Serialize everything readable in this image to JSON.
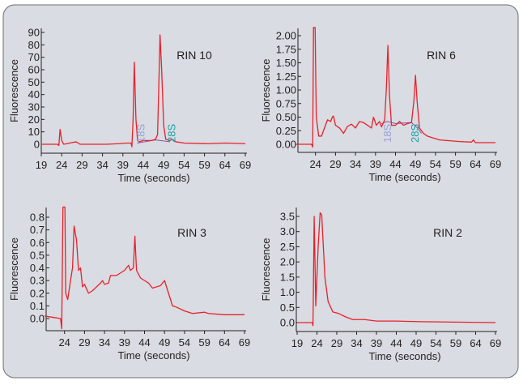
{
  "colors": {
    "trace": "#e8212b",
    "background": "#d9dce2",
    "label_18S": "#9b9fd6",
    "label_28S": "#17a2a4",
    "baseline": "#8a4fa0"
  },
  "chart_data": [
    {
      "type": "line",
      "title": "RIN 10",
      "xlabel": "Time (seconds)",
      "ylabel": "Fluorescence",
      "xlim": [
        19,
        69
      ],
      "ylim": [
        0,
        90
      ],
      "xticks": [
        "19",
        "24",
        "29",
        "34",
        "39",
        "44",
        "49",
        "54",
        "59",
        "64",
        "69"
      ],
      "yticks": [
        "0",
        "10",
        "20",
        "30",
        "40",
        "50",
        "60",
        "70",
        "80",
        "90"
      ],
      "annotations": [
        {
          "text": "18S",
          "x": 43.5
        },
        {
          "text": "28S",
          "x": 51
        }
      ],
      "baseline": [
        [
          42.5,
          1
        ],
        [
          47,
          3.5
        ],
        [
          50.5,
          2
        ]
      ],
      "points": [
        [
          19,
          0
        ],
        [
          23,
          0
        ],
        [
          23.3,
          -1
        ],
        [
          23.6,
          12
        ],
        [
          24,
          3
        ],
        [
          24.5,
          0
        ],
        [
          26,
          1
        ],
        [
          27.5,
          2
        ],
        [
          28.5,
          0
        ],
        [
          35,
          0
        ],
        [
          38,
          0.5
        ],
        [
          40,
          1
        ],
        [
          41,
          1
        ],
        [
          41.2,
          -2
        ],
        [
          41.5,
          20
        ],
        [
          41.8,
          66
        ],
        [
          42.2,
          20
        ],
        [
          42.6,
          3
        ],
        [
          43,
          2
        ],
        [
          44,
          3
        ],
        [
          46,
          3
        ],
        [
          47,
          4
        ],
        [
          47.5,
          8
        ],
        [
          47.9,
          60
        ],
        [
          48.1,
          88
        ],
        [
          48.5,
          60
        ],
        [
          49,
          15
        ],
        [
          49.5,
          4
        ],
        [
          50.5,
          3
        ],
        [
          51,
          4
        ],
        [
          52,
          2
        ],
        [
          54,
          1
        ],
        [
          60,
          0.5
        ],
        [
          64,
          1
        ],
        [
          69,
          0.5
        ]
      ]
    },
    {
      "type": "line",
      "title": "RIN 6",
      "xlabel": "Time (seconds)",
      "ylabel": "Fluorescence",
      "xlim": [
        19,
        69
      ],
      "ylim": [
        0,
        2
      ],
      "xticks": [
        "24",
        "29",
        "34",
        "39",
        "44",
        "49",
        "54",
        "59",
        "64",
        "69"
      ],
      "yticks": [
        "0.00",
        "0.25",
        "0.50",
        "0.75",
        "1.00",
        "1.25",
        "1.50",
        "1.75",
        "2.00"
      ],
      "annotations": [
        {
          "text": "18S",
          "x": 42.1
        },
        {
          "text": "28S",
          "x": 49
        }
      ],
      "baseline": [
        [
          40.5,
          0.38
        ],
        [
          42,
          0.42
        ],
        [
          44,
          0.38
        ],
        [
          48,
          0.4
        ],
        [
          49.5,
          0.3
        ],
        [
          50.5,
          0.2
        ]
      ],
      "points": [
        [
          19,
          0
        ],
        [
          23,
          0
        ],
        [
          23.3,
          -0.05
        ],
        [
          23.5,
          2.15
        ],
        [
          23.9,
          2.15
        ],
        [
          24.2,
          0.5
        ],
        [
          24.8,
          0.15
        ],
        [
          25.5,
          0.15
        ],
        [
          26,
          0.25
        ],
        [
          27,
          0.45
        ],
        [
          27.8,
          0.42
        ],
        [
          28.2,
          0.5
        ],
        [
          28.5,
          0.52
        ],
        [
          29,
          0.35
        ],
        [
          30,
          0.3
        ],
        [
          31,
          0.2
        ],
        [
          32,
          0.33
        ],
        [
          33,
          0.37
        ],
        [
          34,
          0.3
        ],
        [
          35,
          0.42
        ],
        [
          36,
          0.4
        ],
        [
          37,
          0.35
        ],
        [
          38,
          0.3
        ],
        [
          38.5,
          0.5
        ],
        [
          39.2,
          0.35
        ],
        [
          40,
          0.42
        ],
        [
          40.5,
          0.32
        ],
        [
          41.3,
          0.45
        ],
        [
          41.7,
          1.0
        ],
        [
          42.1,
          1.82
        ],
        [
          42.5,
          0.9
        ],
        [
          43,
          0.35
        ],
        [
          44,
          0.35
        ],
        [
          45,
          0.42
        ],
        [
          46,
          0.35
        ],
        [
          47,
          0.38
        ],
        [
          48,
          0.4
        ],
        [
          48.6,
          0.8
        ],
        [
          49,
          1.27
        ],
        [
          49.4,
          0.8
        ],
        [
          50,
          0.3
        ],
        [
          51,
          0.2
        ],
        [
          52,
          0.15
        ],
        [
          55,
          0.08
        ],
        [
          60,
          0.05
        ],
        [
          63,
          0.04
        ],
        [
          63.5,
          0.08
        ],
        [
          64,
          0.03
        ],
        [
          69,
          0.03
        ]
      ]
    },
    {
      "type": "line",
      "title": "RIN 3",
      "xlabel": "Time (seconds)",
      "ylabel": "Fluorescence",
      "xlim": [
        19,
        69
      ],
      "ylim": [
        0,
        0.8
      ],
      "xticks": [
        "24",
        "29",
        "34",
        "39",
        "44",
        "49",
        "54",
        "59",
        "64",
        "69"
      ],
      "yticks": [
        "0.0",
        "0.1",
        "0.2",
        "0.3",
        "0.4",
        "0.5",
        "0.6",
        "0.7",
        "0.8"
      ],
      "points": [
        [
          19,
          0.02
        ],
        [
          21,
          0.01
        ],
        [
          23,
          0
        ],
        [
          23.3,
          -0.08
        ],
        [
          23.6,
          0.88
        ],
        [
          24.1,
          0.88
        ],
        [
          24.3,
          0.2
        ],
        [
          24.8,
          0.15
        ],
        [
          25.5,
          0.3
        ],
        [
          26,
          0.4
        ],
        [
          26.4,
          0.73
        ],
        [
          27,
          0.62
        ],
        [
          27.5,
          0.38
        ],
        [
          28,
          0.4
        ],
        [
          28.5,
          0.25
        ],
        [
          29,
          0.27
        ],
        [
          30,
          0.2
        ],
        [
          31,
          0.22
        ],
        [
          32,
          0.25
        ],
        [
          33,
          0.28
        ],
        [
          33.5,
          0.3
        ],
        [
          34,
          0.27
        ],
        [
          35,
          0.28
        ],
        [
          35.5,
          0.34
        ],
        [
          37,
          0.34
        ],
        [
          38,
          0.36
        ],
        [
          39,
          0.38
        ],
        [
          40,
          0.42
        ],
        [
          40.5,
          0.38
        ],
        [
          41.2,
          0.4
        ],
        [
          41.6,
          0.65
        ],
        [
          42,
          0.38
        ],
        [
          43,
          0.32
        ],
        [
          44,
          0.3
        ],
        [
          45,
          0.28
        ],
        [
          46,
          0.24
        ],
        [
          47,
          0.25
        ],
        [
          48,
          0.26
        ],
        [
          49,
          0.3
        ],
        [
          50,
          0.2
        ],
        [
          51,
          0.1
        ],
        [
          52,
          0.09
        ],
        [
          54,
          0.06
        ],
        [
          56,
          0.04
        ],
        [
          59,
          0.05
        ],
        [
          60,
          0.04
        ],
        [
          64,
          0.03
        ],
        [
          69,
          0.03
        ]
      ]
    },
    {
      "type": "line",
      "title": "RIN 2",
      "xlabel": "Time (seconds)",
      "ylabel": "Fluorescence",
      "xlim": [
        19,
        69
      ],
      "ylim": [
        0,
        3.5
      ],
      "xticks": [
        "19",
        "24",
        "29",
        "34",
        "39",
        "44",
        "49",
        "54",
        "59",
        "64",
        "69"
      ],
      "yticks": [
        "0.0",
        "0.5",
        "1.0",
        "1.5",
        "2.0",
        "2.5",
        "3.0",
        "3.5"
      ],
      "points": [
        [
          19,
          0
        ],
        [
          22.8,
          0
        ],
        [
          23,
          -0.1
        ],
        [
          23.3,
          3.5
        ],
        [
          23.7,
          0.55
        ],
        [
          24.3,
          2.5
        ],
        [
          24.8,
          3.62
        ],
        [
          25.2,
          3.55
        ],
        [
          26,
          1.5
        ],
        [
          26.8,
          0.7
        ],
        [
          28,
          0.35
        ],
        [
          29.5,
          0.3
        ],
        [
          31,
          0.2
        ],
        [
          33,
          0.1
        ],
        [
          36,
          0.1
        ],
        [
          39,
          0.05
        ],
        [
          44,
          0.05
        ],
        [
          50,
          0.03
        ],
        [
          69,
          0
        ]
      ]
    }
  ]
}
